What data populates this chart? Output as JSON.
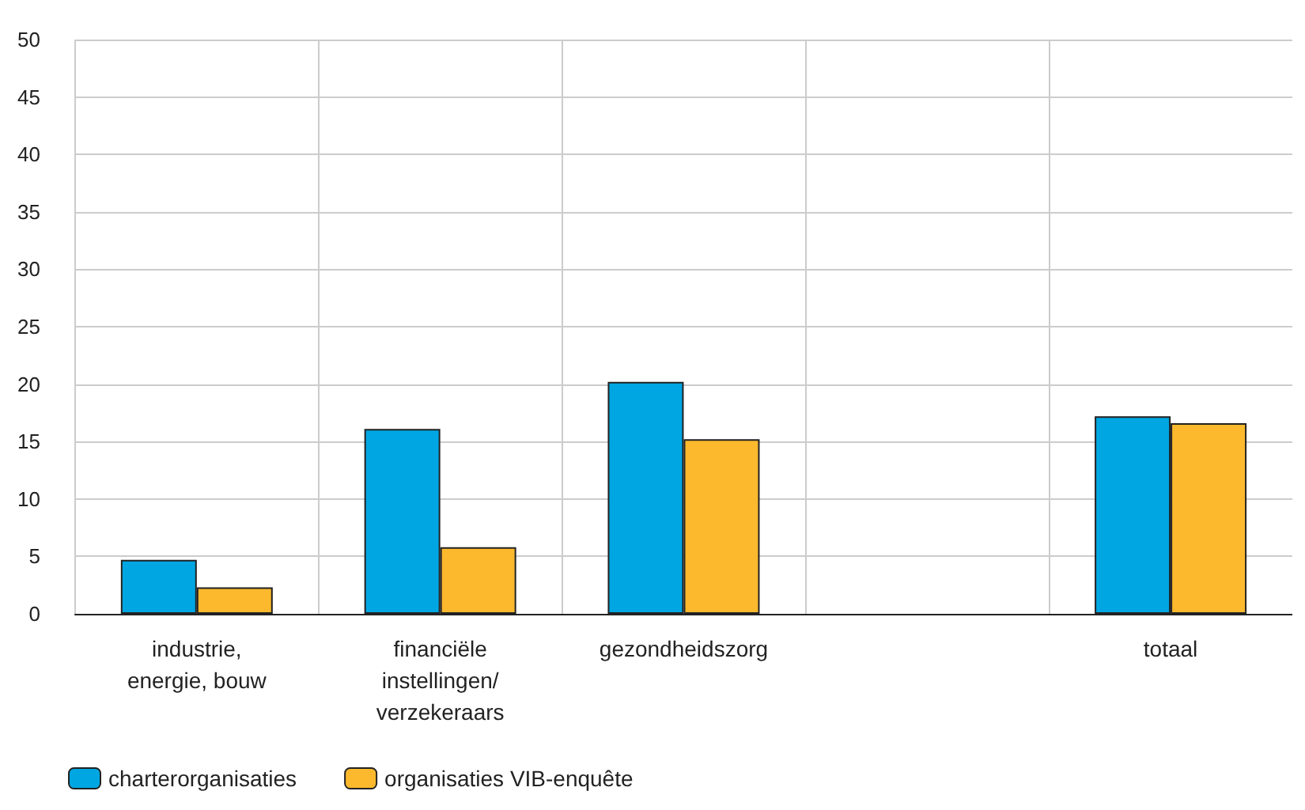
{
  "chart_data": {
    "type": "bar",
    "categories": [
      "industrie,\nenergie, bouw",
      "financiële\ninstellingen/\nverzekeraars",
      "gezondheidszorg",
      null,
      "totaal"
    ],
    "series": [
      {
        "name": "charterorganisaties",
        "color": "#00a6e2",
        "values": [
          4.7,
          16.1,
          20.2,
          null,
          17.2
        ]
      },
      {
        "name": "organisaties VIB-enquête",
        "color": "#fdb92e",
        "values": [
          2.3,
          5.8,
          15.2,
          null,
          16.6
        ]
      }
    ],
    "ylim": [
      0,
      50
    ],
    "yticks": [
      0,
      5,
      10,
      15,
      20,
      25,
      30,
      35,
      40,
      45,
      50
    ],
    "grid": true,
    "legend": "bottom left"
  }
}
